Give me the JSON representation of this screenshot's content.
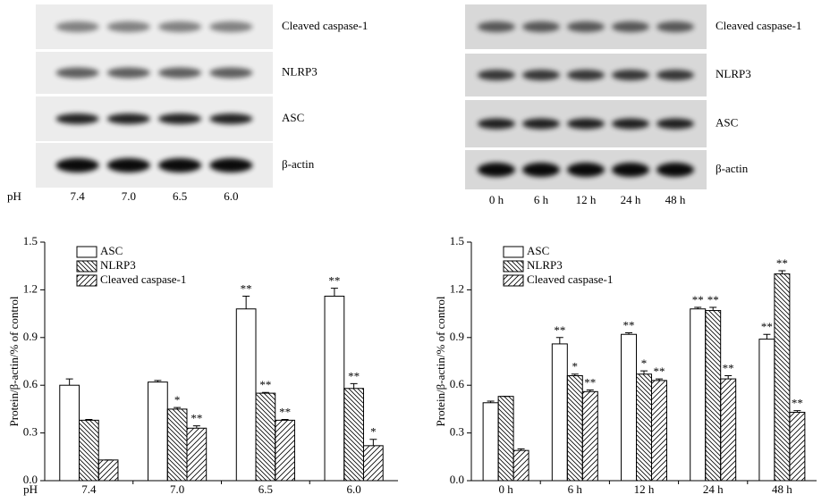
{
  "blots": [
    {
      "labels": [
        "Cleaved caspase-1",
        "NLRP3",
        "ASC",
        "β-actin"
      ],
      "lane_prefix": "pH",
      "lanes": [
        "7.4",
        "7.0",
        "6.5",
        "6.0"
      ]
    },
    {
      "labels": [
        "Cleaved caspase-1",
        "NLRP3",
        "ASC",
        "β-actin"
      ],
      "lanes": [
        "0 h",
        "6 h",
        "12 h",
        "24 h",
        "48 h"
      ]
    }
  ],
  "chart_data": [
    {
      "type": "bar",
      "y_label": "Protein/β-actin/% of control",
      "x_prefix": "pH",
      "categories": [
        "7.4",
        "7.0",
        "6.5",
        "6.0"
      ],
      "series": [
        {
          "name": "ASC",
          "pattern": "none",
          "values": [
            0.6,
            0.62,
            1.08,
            1.16
          ],
          "errors": [
            0.04,
            0.01,
            0.08,
            0.05
          ],
          "significance": [
            null,
            null,
            "**",
            "**"
          ]
        },
        {
          "name": "NLRP3",
          "pattern": "back",
          "values": [
            0.38,
            0.45,
            0.55,
            0.58
          ],
          "errors": [
            0.005,
            0.01,
            0.005,
            0.03
          ],
          "significance": [
            null,
            "*",
            "**",
            "**"
          ]
        },
        {
          "name": "Cleaved caspase-1",
          "pattern": "forward",
          "values": [
            0.13,
            0.33,
            0.38,
            0.22
          ],
          "errors": [
            0,
            0.015,
            0.005,
            0.04
          ],
          "significance": [
            null,
            "**",
            "**",
            "*"
          ]
        }
      ],
      "ylim": [
        0,
        1.5
      ],
      "yticks": [
        {
          "value": 0,
          "label": "0.0"
        },
        0.3,
        0.6,
        0.9,
        1.2,
        1.5
      ]
    },
    {
      "type": "bar",
      "y_label": "Protein/β-actin/% of control",
      "categories": [
        "0 h",
        "6 h",
        "12 h",
        "24 h",
        "48 h"
      ],
      "series": [
        {
          "name": "ASC",
          "pattern": "none",
          "values": [
            0.49,
            0.86,
            0.92,
            1.08,
            0.89
          ],
          "errors": [
            0.01,
            0.04,
            0.01,
            0.01,
            0.03
          ],
          "significance": [
            null,
            "**",
            "**",
            "**",
            "**"
          ]
        },
        {
          "name": "NLRP3",
          "pattern": "back",
          "values": [
            0.53,
            0.66,
            0.67,
            1.07,
            1.3
          ],
          "errors": [
            0,
            0.01,
            0.02,
            0.02,
            0.02
          ],
          "significance": [
            null,
            "*",
            "*",
            "**",
            "**"
          ]
        },
        {
          "name": "Cleaved caspase-1",
          "pattern": "forward",
          "values": [
            0.19,
            0.56,
            0.63,
            0.64,
            0.43
          ],
          "errors": [
            0.01,
            0.01,
            0.01,
            0.02,
            0.01
          ],
          "significance": [
            null,
            "**",
            "**",
            "**",
            "**"
          ]
        }
      ],
      "ylim": [
        0,
        1.5
      ],
      "yticks": [
        {
          "value": 0,
          "label": "0.0"
        },
        0.3,
        0.6,
        0.9,
        1.2,
        1.5
      ]
    }
  ]
}
